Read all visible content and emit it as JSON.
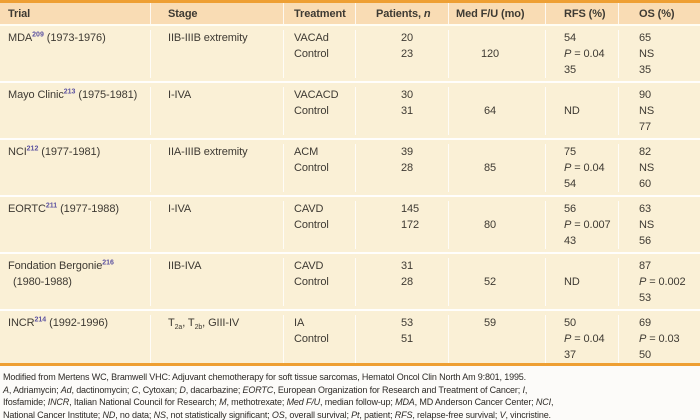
{
  "colors": {
    "accent_orange": "#EE9F33",
    "header_bg": "#F9DCB4",
    "body_bg": "#FAF0D6",
    "reference_purple": "#5C52A0",
    "text": "#3E3A33",
    "footnote_bg": "#FCFBF9"
  },
  "table": {
    "columns": [
      {
        "id": "trial",
        "label": [
          {
            "t": "Trial"
          }
        ]
      },
      {
        "id": "stage",
        "label": [
          {
            "t": "Stage"
          }
        ]
      },
      {
        "id": "treatment",
        "label": [
          {
            "t": "Treatment"
          }
        ]
      },
      {
        "id": "patients",
        "label": [
          {
            "t": "Patients, "
          },
          {
            "t": "n",
            "i": true
          }
        ]
      },
      {
        "id": "med-fu",
        "label": [
          {
            "t": "Med F/U (mo)"
          }
        ]
      },
      {
        "id": "rfs",
        "label": [
          {
            "t": "RFS (%)"
          }
        ]
      },
      {
        "id": "os",
        "label": [
          {
            "t": "OS (%)"
          }
        ]
      }
    ],
    "groups": [
      {
        "trial": {
          "line1": [
            {
              "t": "MDA"
            },
            {
              "t": "209",
              "sup": true
            },
            {
              "t": " (1973-1976)"
            }
          ],
          "line2": ""
        },
        "stage": [
          {
            "t": "IIB-IIIB extremity"
          }
        ],
        "lines": [
          {
            "treatment": "VACAd",
            "patients": "20",
            "fu": "",
            "rfs": "54",
            "os": "65"
          },
          {
            "treatment": "Control",
            "patients": "23",
            "fu": "120",
            "rfs": "P = 0.04",
            "os": "NS"
          },
          {
            "treatment": "",
            "patients": "",
            "fu": "",
            "rfs": "35",
            "os": "35"
          }
        ]
      },
      {
        "trial": {
          "line1": [
            {
              "t": "Mayo Clinic"
            },
            {
              "t": "213",
              "sup": true
            },
            {
              "t": " (1975-1981)"
            }
          ],
          "line2": ""
        },
        "stage": [
          {
            "t": "I-IVA"
          }
        ],
        "lines": [
          {
            "treatment": "VACACD",
            "patients": "30",
            "fu": "",
            "rfs": "",
            "os": "90"
          },
          {
            "treatment": "Control",
            "patients": "31",
            "fu": "64",
            "rfs": "ND",
            "os": "NS"
          },
          {
            "treatment": "",
            "patients": "",
            "fu": "",
            "rfs": "",
            "os": "77"
          }
        ]
      },
      {
        "trial": {
          "line1": [
            {
              "t": "NCI"
            },
            {
              "t": "212",
              "sup": true
            },
            {
              "t": " (1977-1981)"
            }
          ],
          "line2": ""
        },
        "stage": [
          {
            "t": "IIA-IIIB extremity"
          }
        ],
        "lines": [
          {
            "treatment": "ACM",
            "patients": "39",
            "fu": "",
            "rfs": "75",
            "os": "82"
          },
          {
            "treatment": "Control",
            "patients": "28",
            "fu": "85",
            "rfs": "P = 0.04",
            "os": "NS"
          },
          {
            "treatment": "",
            "patients": "",
            "fu": "",
            "rfs": "54",
            "os": "60"
          }
        ]
      },
      {
        "trial": {
          "line1": [
            {
              "t": "EORTC"
            },
            {
              "t": "211",
              "sup": true
            },
            {
              "t": " (1977-1988)"
            }
          ],
          "line2": ""
        },
        "stage": [
          {
            "t": "I-IVA"
          }
        ],
        "lines": [
          {
            "treatment": "CAVD",
            "patients": "145",
            "fu": "",
            "rfs": "56",
            "os": "63"
          },
          {
            "treatment": "Control",
            "patients": "172",
            "fu": "80",
            "rfs": "P = 0.007",
            "os": "NS"
          },
          {
            "treatment": "",
            "patients": "",
            "fu": "",
            "rfs": "43",
            "os": "56"
          }
        ]
      },
      {
        "trial": {
          "line1": [
            {
              "t": "Fondation Bergonie"
            },
            {
              "t": "216",
              "sup": true
            }
          ],
          "line2": "(1980-1988)"
        },
        "stage": [
          {
            "t": "IIB-IVA"
          }
        ],
        "lines": [
          {
            "treatment": "CAVD",
            "patients": "31",
            "fu": "",
            "rfs": "",
            "os": "87"
          },
          {
            "treatment": "Control",
            "patients": "28",
            "fu": "52",
            "rfs": "ND",
            "os": "P = 0.002"
          },
          {
            "treatment": "",
            "patients": "",
            "fu": "",
            "rfs": "",
            "os": "53"
          }
        ]
      },
      {
        "trial": {
          "line1": [
            {
              "t": "INCR"
            },
            {
              "t": "214",
              "sup": true
            },
            {
              "t": " (1992-1996)"
            }
          ],
          "line2": ""
        },
        "stage": [
          {
            "t": "T"
          },
          {
            "t": "2a",
            "sub": true
          },
          {
            "t": ", T"
          },
          {
            "t": "2b",
            "sub": true
          },
          {
            "t": ", GIII-IV"
          }
        ],
        "lines": [
          {
            "treatment": "IA",
            "patients": "53",
            "fu": "59",
            "rfs": "50",
            "os": "69"
          },
          {
            "treatment": "Control",
            "patients": "51",
            "fu": "",
            "rfs": "P = 0.04",
            "os": "P = 0.03"
          },
          {
            "treatment": "",
            "patients": "",
            "fu": "",
            "rfs": "37",
            "os": "50"
          }
        ]
      }
    ]
  },
  "footnote": {
    "lines": [
      [
        {
          "t": "Modified from Mertens WC, Bramwell VHC: Adjuvant chemotherapy for soft tissue sarcomas, Hematol Oncol Clin North Am 9:801, 1995."
        }
      ],
      [
        {
          "t": "A",
          "i": true
        },
        {
          "t": ", Adriamycin; "
        },
        {
          "t": "Ad",
          "i": true
        },
        {
          "t": ", dactinomycin; "
        },
        {
          "t": "C",
          "i": true
        },
        {
          "t": ", Cytoxan; "
        },
        {
          "t": "D",
          "i": true
        },
        {
          "t": ", dacarbazine; "
        },
        {
          "t": "EORTC",
          "i": true
        },
        {
          "t": ", European Organization for Research and Treatment of Cancer; "
        },
        {
          "t": "I",
          "i": true
        },
        {
          "t": ","
        }
      ],
      [
        {
          "t": "Ifosfamide; "
        },
        {
          "t": "INCR",
          "i": true
        },
        {
          "t": ", Italian National Council for Research; "
        },
        {
          "t": "M",
          "i": true
        },
        {
          "t": ", methotrexate; "
        },
        {
          "t": "Med F/U",
          "i": true
        },
        {
          "t": ", median follow-up; "
        },
        {
          "t": "MDA",
          "i": true
        },
        {
          "t": ", MD Anderson Cancer Center; "
        },
        {
          "t": "NCI",
          "i": true
        },
        {
          "t": ","
        }
      ],
      [
        {
          "t": "National Cancer Institute; "
        },
        {
          "t": "ND",
          "i": true
        },
        {
          "t": ", no data; "
        },
        {
          "t": "NS",
          "i": true
        },
        {
          "t": ", not statistically significant; "
        },
        {
          "t": "OS",
          "i": true
        },
        {
          "t": ", overall survival; "
        },
        {
          "t": "Pt",
          "i": true
        },
        {
          "t": ", patient; "
        },
        {
          "t": "RFS",
          "i": true
        },
        {
          "t": ", relapse-free survival; "
        },
        {
          "t": "V",
          "i": true
        },
        {
          "t": ", vincristine."
        }
      ]
    ]
  }
}
